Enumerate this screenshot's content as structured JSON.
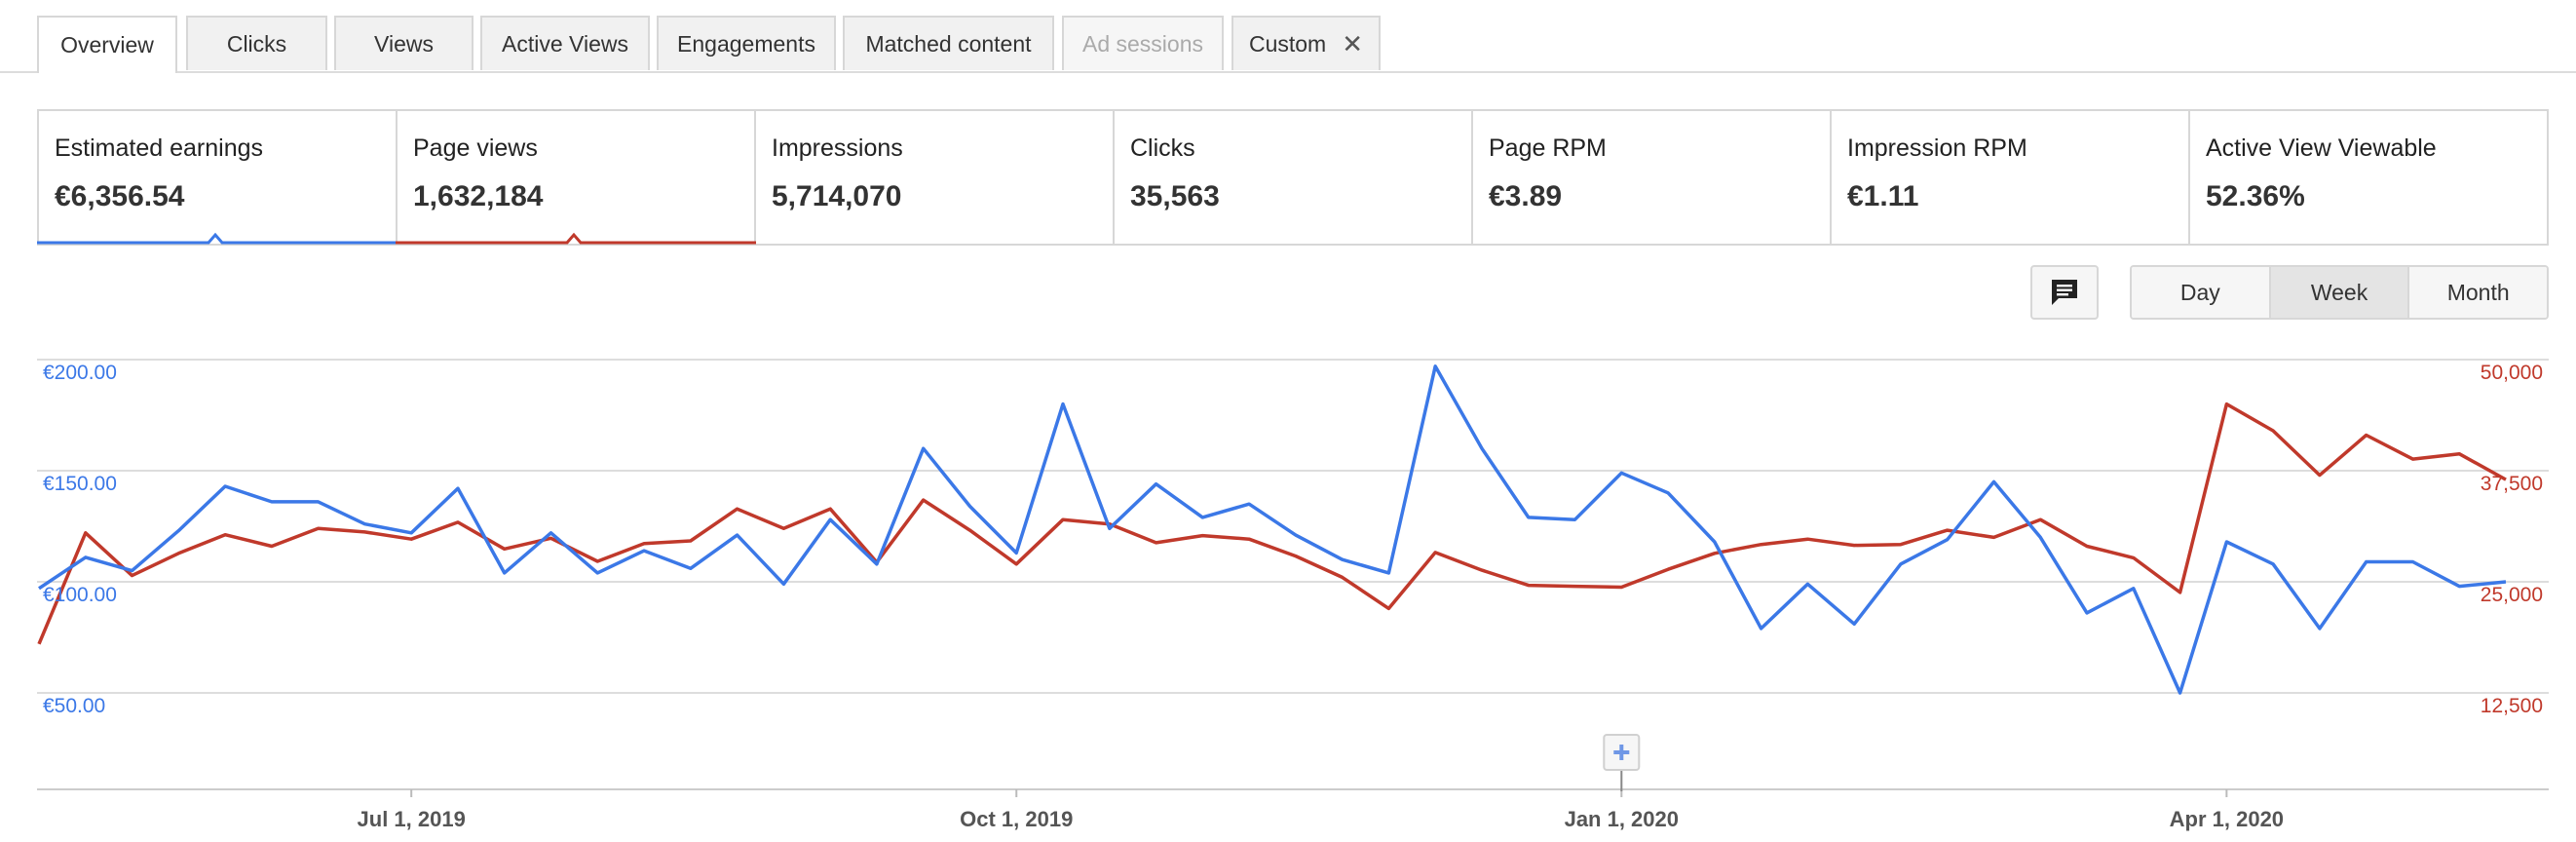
{
  "tabs": [
    {
      "label": "Overview",
      "state": "active"
    },
    {
      "label": "Clicks",
      "state": "normal"
    },
    {
      "label": "Views",
      "state": "normal"
    },
    {
      "label": "Active Views",
      "state": "normal"
    },
    {
      "label": "Engagements",
      "state": "normal"
    },
    {
      "label": "Matched content",
      "state": "normal"
    },
    {
      "label": "Ad sessions",
      "state": "disabled"
    },
    {
      "label": "Custom",
      "state": "normal",
      "closable": true
    }
  ],
  "scorecards": [
    {
      "label": "Estimated earnings",
      "value": "€6,356.54",
      "selected": true,
      "color": "#3b78e7"
    },
    {
      "label": "Page views",
      "value": "1,632,184",
      "selected": true,
      "color": "#c0392b"
    },
    {
      "label": "Impressions",
      "value": "5,714,070",
      "selected": false
    },
    {
      "label": "Clicks",
      "value": "35,563",
      "selected": false
    },
    {
      "label": "Page RPM",
      "value": "€3.89",
      "selected": false
    },
    {
      "label": "Impression RPM",
      "value": "€1.11",
      "selected": false
    },
    {
      "label": "Active View Viewable",
      "value": "52.36%",
      "selected": false
    }
  ],
  "controls": {
    "comment_icon": "comment-icon",
    "range_options": [
      {
        "label": "Day",
        "active": false
      },
      {
        "label": "Week",
        "active": true
      },
      {
        "label": "Month",
        "active": false
      }
    ]
  },
  "chart_data": {
    "type": "line",
    "x_axis": {
      "ticks": [
        "Jul 1, 2019",
        "Oct 1, 2019",
        "Jan 1, 2020",
        "Apr 1, 2020"
      ],
      "tick_index": [
        8,
        21,
        34,
        47
      ]
    },
    "y_left": {
      "ticks": [
        "€50.00",
        "€100.00",
        "€150.00",
        "€200.00"
      ],
      "range": [
        0,
        200
      ],
      "unit": "EUR"
    },
    "y_right": {
      "ticks": [
        "12,500",
        "25,000",
        "37,500",
        "50,000"
      ],
      "range": [
        0,
        50000
      ]
    },
    "grid": true,
    "annotation_marker": {
      "index": 34,
      "icon": "plus-icon"
    },
    "series": [
      {
        "name": "Estimated earnings",
        "axis": "left",
        "color": "#3b78e7",
        "values": [
          97,
          111,
          105,
          123,
          143,
          136,
          136,
          126,
          122,
          142,
          104,
          122,
          104,
          114,
          106,
          121,
          99,
          128,
          108,
          160,
          134,
          113,
          180,
          124,
          144,
          129,
          135,
          121,
          110,
          104,
          197,
          160,
          129,
          128,
          149,
          140,
          118,
          79,
          99,
          81,
          108,
          119,
          145,
          120,
          86,
          97,
          50,
          118,
          108,
          79,
          109,
          109,
          98,
          100
        ]
      },
      {
        "name": "Page views",
        "axis": "right",
        "color": "#c0392b",
        "values": [
          18000,
          30500,
          25700,
          28200,
          30300,
          29000,
          31000,
          30600,
          29800,
          31700,
          28700,
          29900,
          27300,
          29300,
          29600,
          33200,
          31000,
          33200,
          27200,
          34200,
          30800,
          27000,
          32000,
          31500,
          29400,
          30200,
          29800,
          27900,
          25500,
          22000,
          28300,
          26300,
          24600,
          24500,
          24400,
          26400,
          28200,
          29200,
          29800,
          29100,
          29200,
          30800,
          30000,
          32000,
          29000,
          27700,
          23800,
          45000,
          42000,
          37000,
          41500,
          38800,
          39400,
          36500
        ]
      }
    ]
  }
}
